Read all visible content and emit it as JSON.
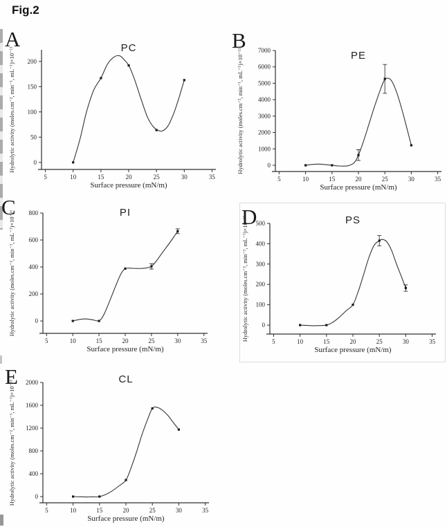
{
  "figure_label": "Fig.2",
  "colors": {
    "axis": "#2e2e2e",
    "curve": "#333333",
    "marker": "#1a1a1a",
    "text": "#222222",
    "panel_border": "#dcdcdc"
  },
  "shared": {
    "xlabel": "Surface pressure (mN/m)",
    "ylabel": "Hydrolytic activity (moles.cm⁻², min⁻¹, mL⁻¹)×10⁻¹¹",
    "xticks": [
      5,
      10,
      15,
      20,
      25,
      30,
      35
    ],
    "xlim": [
      4.3,
      35.7
    ]
  },
  "chart_data": [
    {
      "panel": "A",
      "title": "PC",
      "type": "line",
      "x": [
        10,
        15,
        20,
        25,
        30
      ],
      "y": [
        0,
        167,
        192,
        64,
        163
      ],
      "error": [
        0,
        0,
        0,
        0,
        0
      ],
      "yticks": [
        0,
        50,
        100,
        150,
        200
      ],
      "ylim": [
        -14,
        223
      ],
      "curve": [
        [
          10,
          0
        ],
        [
          11.2,
          45
        ],
        [
          12.4,
          100
        ],
        [
          13.7,
          143
        ],
        [
          15,
          167
        ],
        [
          16.2,
          195
        ],
        [
          17.4,
          209
        ],
        [
          18.4,
          211
        ],
        [
          19.2,
          203
        ],
        [
          20,
          192
        ],
        [
          21,
          166
        ],
        [
          22.2,
          126
        ],
        [
          23.4,
          89
        ],
        [
          24.4,
          71
        ],
        [
          25.2,
          64
        ],
        [
          26,
          62
        ],
        [
          27,
          71
        ],
        [
          28,
          94
        ],
        [
          29,
          126
        ],
        [
          30,
          163
        ]
      ]
    },
    {
      "panel": "B",
      "title": "PE",
      "type": "line",
      "x": [
        10,
        15,
        20,
        25,
        30
      ],
      "y": [
        0,
        0,
        620,
        5270,
        1220
      ],
      "error": [
        0,
        0,
        330,
        880,
        0
      ],
      "yticks": [
        0,
        1000,
        2000,
        3000,
        4000,
        5000,
        6000,
        7000
      ],
      "ylim": [
        -380,
        7000
      ],
      "curve": [
        [
          10,
          0
        ],
        [
          11.2,
          50
        ],
        [
          12.4,
          72
        ],
        [
          13.7,
          45
        ],
        [
          15,
          0
        ],
        [
          16.2,
          -42
        ],
        [
          17.2,
          -52
        ],
        [
          18.2,
          -15
        ],
        [
          19.2,
          160
        ],
        [
          20,
          620
        ],
        [
          21,
          1500
        ],
        [
          22,
          2520
        ],
        [
          23,
          3540
        ],
        [
          24,
          4480
        ],
        [
          24.8,
          5130
        ],
        [
          25.4,
          5310
        ],
        [
          26.2,
          5180
        ],
        [
          27.2,
          4480
        ],
        [
          28.2,
          3420
        ],
        [
          29.1,
          2330
        ],
        [
          30,
          1220
        ]
      ]
    },
    {
      "panel": "C",
      "title": "PI",
      "type": "line",
      "x": [
        10,
        15,
        20,
        25,
        30
      ],
      "y": [
        0,
        0,
        388,
        405,
        665
      ],
      "error": [
        0,
        0,
        0,
        20,
        18
      ],
      "yticks": [
        0,
        200,
        400,
        600,
        800
      ],
      "ylim": [
        -92,
        800
      ],
      "curve": [
        [
          10,
          0
        ],
        [
          11.2,
          10
        ],
        [
          12.4,
          15
        ],
        [
          13.7,
          9
        ],
        [
          15,
          2
        ],
        [
          15.9,
          45
        ],
        [
          17,
          145
        ],
        [
          18.2,
          262
        ],
        [
          19.2,
          350
        ],
        [
          20,
          388
        ],
        [
          21,
          391
        ],
        [
          22,
          389
        ],
        [
          23,
          389
        ],
        [
          24,
          393
        ],
        [
          25,
          405
        ],
        [
          26,
          448
        ],
        [
          27,
          502
        ],
        [
          28,
          554
        ],
        [
          29,
          608
        ],
        [
          30,
          665
        ]
      ]
    },
    {
      "panel": "D",
      "title": "PS",
      "type": "line",
      "x": [
        10,
        15,
        20,
        25,
        30
      ],
      "y": [
        0,
        0,
        100,
        415,
        182
      ],
      "error": [
        0,
        0,
        0,
        25,
        16
      ],
      "yticks": [
        0,
        100,
        200,
        300,
        400,
        500
      ],
      "ylim": [
        -44,
        500
      ],
      "curve": [
        [
          10,
          0
        ],
        [
          11.5,
          -2
        ],
        [
          13,
          -3
        ],
        [
          15,
          0
        ],
        [
          16.2,
          14
        ],
        [
          17.4,
          38
        ],
        [
          18.7,
          70
        ],
        [
          20,
          100
        ],
        [
          21,
          164
        ],
        [
          22,
          246
        ],
        [
          23,
          330
        ],
        [
          24,
          392
        ],
        [
          25,
          415
        ],
        [
          25.6,
          421
        ],
        [
          26.4,
          410
        ],
        [
          27.3,
          368
        ],
        [
          28.2,
          303
        ],
        [
          29.1,
          243
        ],
        [
          30,
          182
        ]
      ]
    },
    {
      "panel": "E",
      "title": "CL",
      "type": "line",
      "x": [
        10,
        15,
        20,
        25,
        30
      ],
      "y": [
        0,
        0,
        290,
        1545,
        1175
      ],
      "error": [
        0,
        0,
        0,
        0,
        0
      ],
      "yticks": [
        0,
        400,
        800,
        1200,
        1600,
        2000
      ],
      "ylim": [
        -109,
        2000
      ],
      "curve": [
        [
          10,
          0
        ],
        [
          11.5,
          -4
        ],
        [
          13,
          -6
        ],
        [
          15,
          0
        ],
        [
          16.2,
          38
        ],
        [
          17.4,
          100
        ],
        [
          18.7,
          188
        ],
        [
          20,
          290
        ],
        [
          21,
          510
        ],
        [
          22,
          780
        ],
        [
          23,
          1075
        ],
        [
          24,
          1330
        ],
        [
          25,
          1545
        ],
        [
          25.9,
          1563
        ],
        [
          26.8,
          1520
        ],
        [
          27.9,
          1425
        ],
        [
          28.9,
          1305
        ],
        [
          30,
          1175
        ]
      ]
    }
  ]
}
